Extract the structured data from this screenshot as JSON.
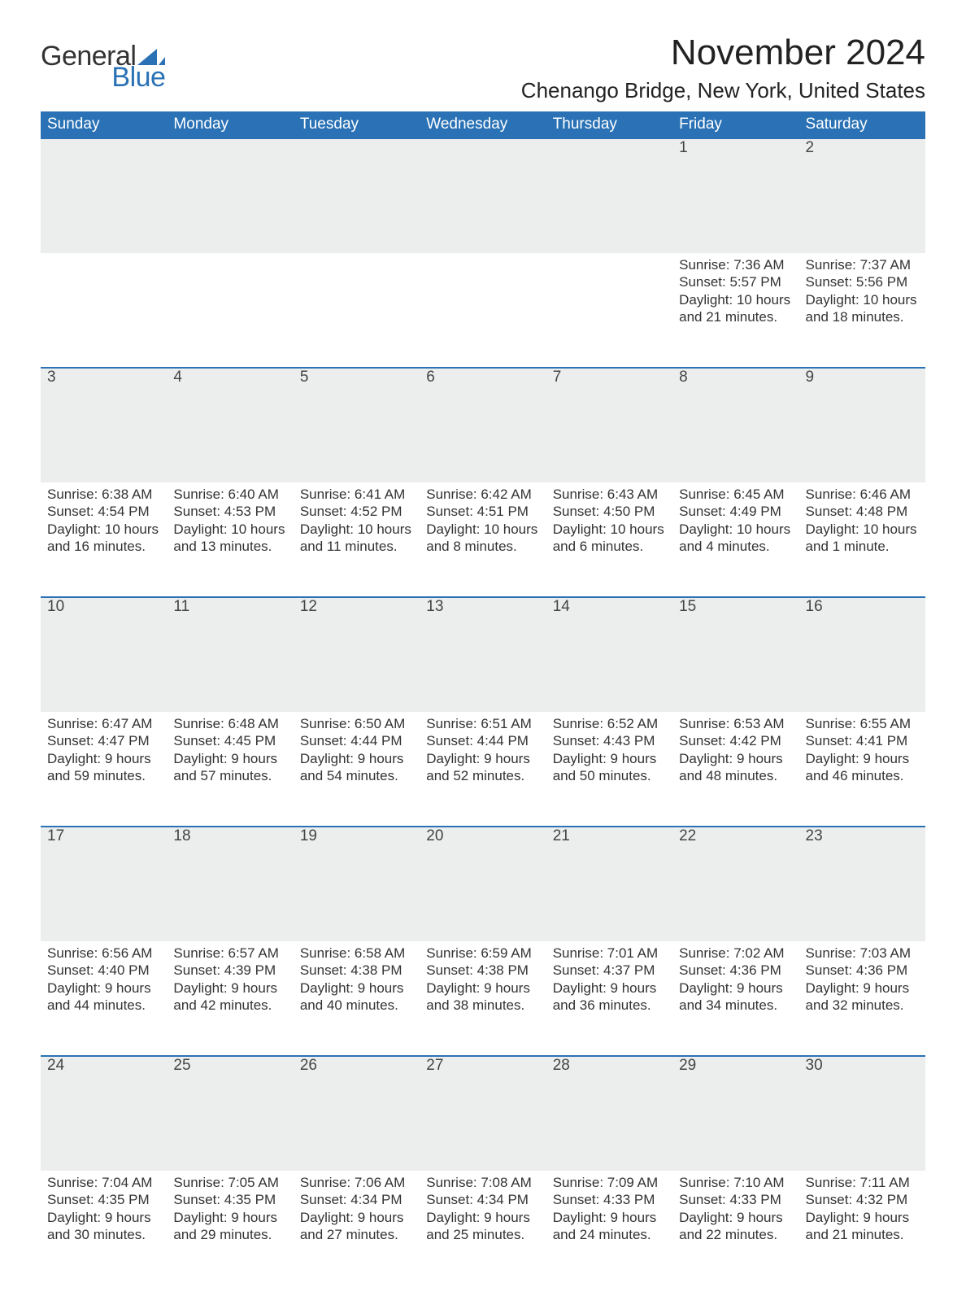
{
  "brand": {
    "word1": "General",
    "word2": "Blue",
    "word1_color": "#333333",
    "word2_color": "#2a72b5",
    "sail_color": "#2a72b5"
  },
  "title": {
    "month": "November 2024",
    "location": "Chenango Bridge, New York, United States",
    "month_fontsize": 44,
    "location_fontsize": 26
  },
  "calendar": {
    "header_bg": "#2a72b5",
    "header_fg": "#ffffff",
    "row_border_color": "#2a72b5",
    "daynum_bg": "#eceded",
    "text_color": "#333333",
    "body_fontsize": 17,
    "header_fontsize": 19,
    "day_headers": [
      "Sunday",
      "Monday",
      "Tuesday",
      "Wednesday",
      "Thursday",
      "Friday",
      "Saturday"
    ],
    "weeks": [
      [
        null,
        null,
        null,
        null,
        null,
        {
          "n": "1",
          "sunrise": "Sunrise: 7:36 AM",
          "sunset": "Sunset: 5:57 PM",
          "dl1": "Daylight: 10 hours",
          "dl2": "and 21 minutes."
        },
        {
          "n": "2",
          "sunrise": "Sunrise: 7:37 AM",
          "sunset": "Sunset: 5:56 PM",
          "dl1": "Daylight: 10 hours",
          "dl2": "and 18 minutes."
        }
      ],
      [
        {
          "n": "3",
          "sunrise": "Sunrise: 6:38 AM",
          "sunset": "Sunset: 4:54 PM",
          "dl1": "Daylight: 10 hours",
          "dl2": "and 16 minutes."
        },
        {
          "n": "4",
          "sunrise": "Sunrise: 6:40 AM",
          "sunset": "Sunset: 4:53 PM",
          "dl1": "Daylight: 10 hours",
          "dl2": "and 13 minutes."
        },
        {
          "n": "5",
          "sunrise": "Sunrise: 6:41 AM",
          "sunset": "Sunset: 4:52 PM",
          "dl1": "Daylight: 10 hours",
          "dl2": "and 11 minutes."
        },
        {
          "n": "6",
          "sunrise": "Sunrise: 6:42 AM",
          "sunset": "Sunset: 4:51 PM",
          "dl1": "Daylight: 10 hours",
          "dl2": "and 8 minutes."
        },
        {
          "n": "7",
          "sunrise": "Sunrise: 6:43 AM",
          "sunset": "Sunset: 4:50 PM",
          "dl1": "Daylight: 10 hours",
          "dl2": "and 6 minutes."
        },
        {
          "n": "8",
          "sunrise": "Sunrise: 6:45 AM",
          "sunset": "Sunset: 4:49 PM",
          "dl1": "Daylight: 10 hours",
          "dl2": "and 4 minutes."
        },
        {
          "n": "9",
          "sunrise": "Sunrise: 6:46 AM",
          "sunset": "Sunset: 4:48 PM",
          "dl1": "Daylight: 10 hours",
          "dl2": "and 1 minute."
        }
      ],
      [
        {
          "n": "10",
          "sunrise": "Sunrise: 6:47 AM",
          "sunset": "Sunset: 4:47 PM",
          "dl1": "Daylight: 9 hours",
          "dl2": "and 59 minutes."
        },
        {
          "n": "11",
          "sunrise": "Sunrise: 6:48 AM",
          "sunset": "Sunset: 4:45 PM",
          "dl1": "Daylight: 9 hours",
          "dl2": "and 57 minutes."
        },
        {
          "n": "12",
          "sunrise": "Sunrise: 6:50 AM",
          "sunset": "Sunset: 4:44 PM",
          "dl1": "Daylight: 9 hours",
          "dl2": "and 54 minutes."
        },
        {
          "n": "13",
          "sunrise": "Sunrise: 6:51 AM",
          "sunset": "Sunset: 4:44 PM",
          "dl1": "Daylight: 9 hours",
          "dl2": "and 52 minutes."
        },
        {
          "n": "14",
          "sunrise": "Sunrise: 6:52 AM",
          "sunset": "Sunset: 4:43 PM",
          "dl1": "Daylight: 9 hours",
          "dl2": "and 50 minutes."
        },
        {
          "n": "15",
          "sunrise": "Sunrise: 6:53 AM",
          "sunset": "Sunset: 4:42 PM",
          "dl1": "Daylight: 9 hours",
          "dl2": "and 48 minutes."
        },
        {
          "n": "16",
          "sunrise": "Sunrise: 6:55 AM",
          "sunset": "Sunset: 4:41 PM",
          "dl1": "Daylight: 9 hours",
          "dl2": "and 46 minutes."
        }
      ],
      [
        {
          "n": "17",
          "sunrise": "Sunrise: 6:56 AM",
          "sunset": "Sunset: 4:40 PM",
          "dl1": "Daylight: 9 hours",
          "dl2": "and 44 minutes."
        },
        {
          "n": "18",
          "sunrise": "Sunrise: 6:57 AM",
          "sunset": "Sunset: 4:39 PM",
          "dl1": "Daylight: 9 hours",
          "dl2": "and 42 minutes."
        },
        {
          "n": "19",
          "sunrise": "Sunrise: 6:58 AM",
          "sunset": "Sunset: 4:38 PM",
          "dl1": "Daylight: 9 hours",
          "dl2": "and 40 minutes."
        },
        {
          "n": "20",
          "sunrise": "Sunrise: 6:59 AM",
          "sunset": "Sunset: 4:38 PM",
          "dl1": "Daylight: 9 hours",
          "dl2": "and 38 minutes."
        },
        {
          "n": "21",
          "sunrise": "Sunrise: 7:01 AM",
          "sunset": "Sunset: 4:37 PM",
          "dl1": "Daylight: 9 hours",
          "dl2": "and 36 minutes."
        },
        {
          "n": "22",
          "sunrise": "Sunrise: 7:02 AM",
          "sunset": "Sunset: 4:36 PM",
          "dl1": "Daylight: 9 hours",
          "dl2": "and 34 minutes."
        },
        {
          "n": "23",
          "sunrise": "Sunrise: 7:03 AM",
          "sunset": "Sunset: 4:36 PM",
          "dl1": "Daylight: 9 hours",
          "dl2": "and 32 minutes."
        }
      ],
      [
        {
          "n": "24",
          "sunrise": "Sunrise: 7:04 AM",
          "sunset": "Sunset: 4:35 PM",
          "dl1": "Daylight: 9 hours",
          "dl2": "and 30 minutes."
        },
        {
          "n": "25",
          "sunrise": "Sunrise: 7:05 AM",
          "sunset": "Sunset: 4:35 PM",
          "dl1": "Daylight: 9 hours",
          "dl2": "and 29 minutes."
        },
        {
          "n": "26",
          "sunrise": "Sunrise: 7:06 AM",
          "sunset": "Sunset: 4:34 PM",
          "dl1": "Daylight: 9 hours",
          "dl2": "and 27 minutes."
        },
        {
          "n": "27",
          "sunrise": "Sunrise: 7:08 AM",
          "sunset": "Sunset: 4:34 PM",
          "dl1": "Daylight: 9 hours",
          "dl2": "and 25 minutes."
        },
        {
          "n": "28",
          "sunrise": "Sunrise: 7:09 AM",
          "sunset": "Sunset: 4:33 PM",
          "dl1": "Daylight: 9 hours",
          "dl2": "and 24 minutes."
        },
        {
          "n": "29",
          "sunrise": "Sunrise: 7:10 AM",
          "sunset": "Sunset: 4:33 PM",
          "dl1": "Daylight: 9 hours",
          "dl2": "and 22 minutes."
        },
        {
          "n": "30",
          "sunrise": "Sunrise: 7:11 AM",
          "sunset": "Sunset: 4:32 PM",
          "dl1": "Daylight: 9 hours",
          "dl2": "and 21 minutes."
        }
      ]
    ]
  }
}
